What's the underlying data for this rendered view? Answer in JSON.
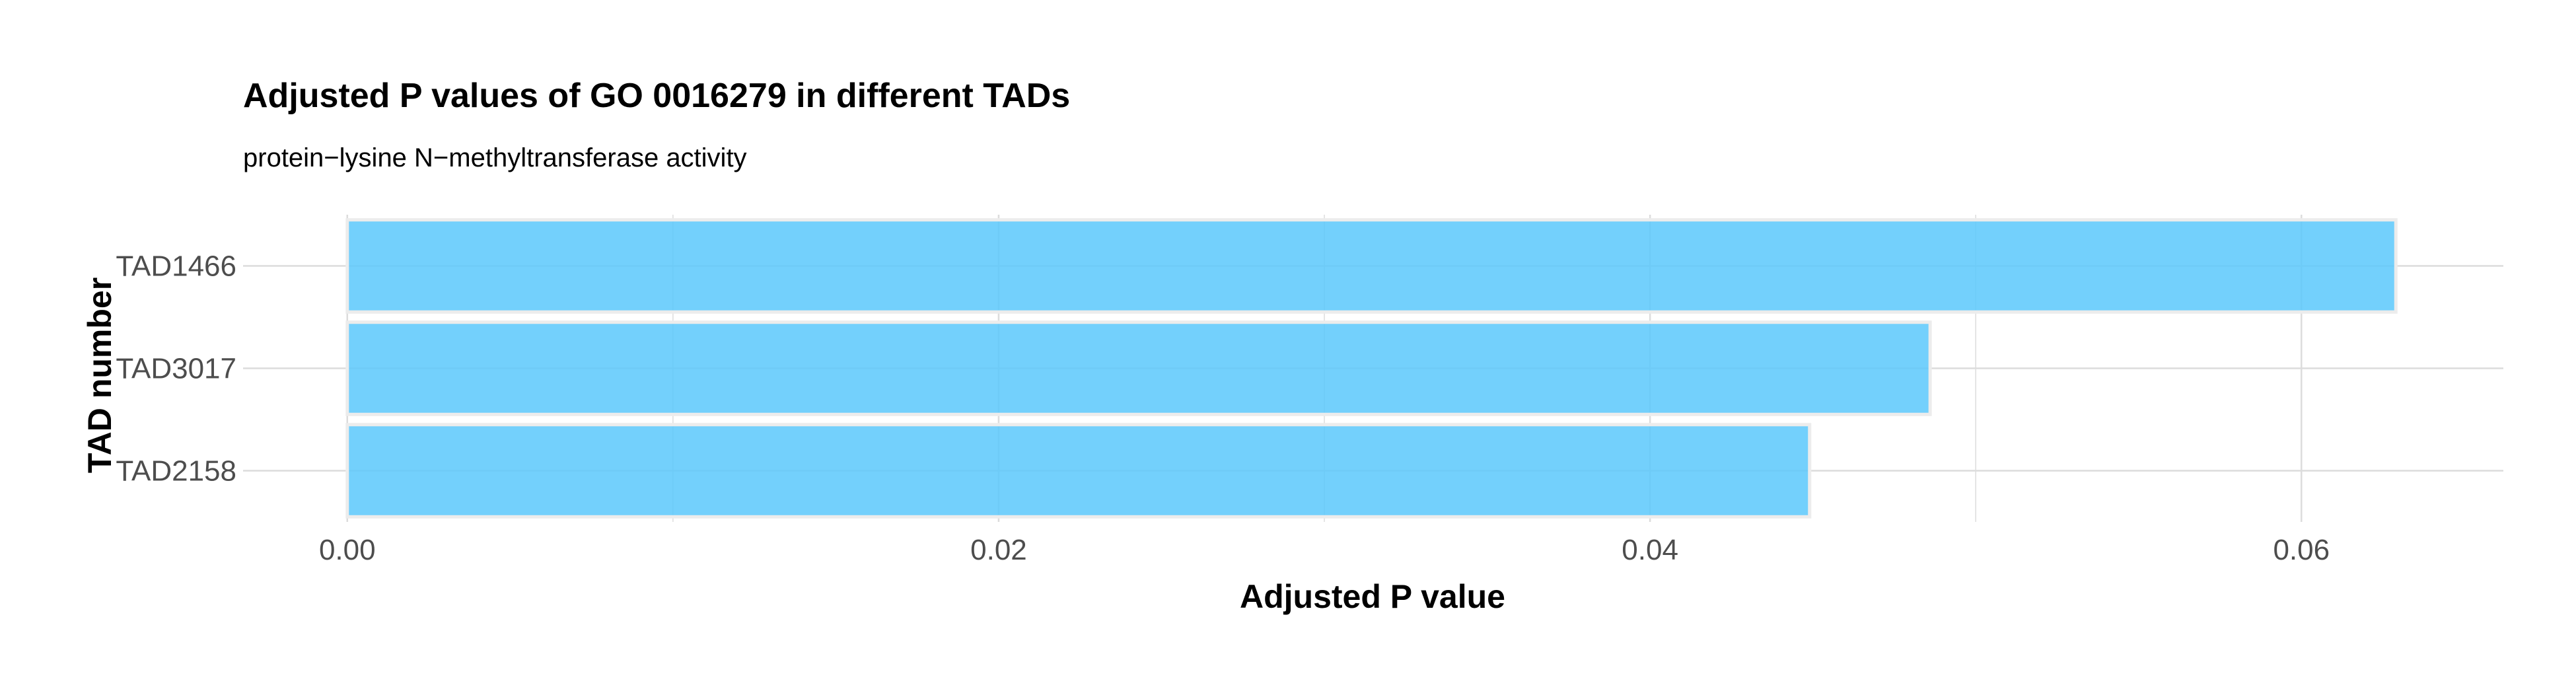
{
  "chart_data": {
    "type": "bar",
    "orientation": "horizontal",
    "title": "Adjusted P values of GO 0016279 in different TADs",
    "subtitle": "protein−lysine N−methyltransferase activity",
    "xlabel": "Adjusted P value",
    "ylabel": "TAD number",
    "categories": [
      "TAD1466",
      "TAD3017",
      "TAD2158"
    ],
    "values": [
      0.0629,
      0.0486,
      0.0449
    ],
    "xlim": [
      -0.0032,
      0.0662
    ],
    "xticks": [
      0.0,
      0.02,
      0.04,
      0.06
    ],
    "xtick_labels": [
      "0.00",
      "0.02",
      "0.04",
      "0.06"
    ],
    "grid": true,
    "bar_color": "#5bc8fb",
    "bar_edge_color": "#ececec",
    "grid_color": "#dcdcdc"
  }
}
